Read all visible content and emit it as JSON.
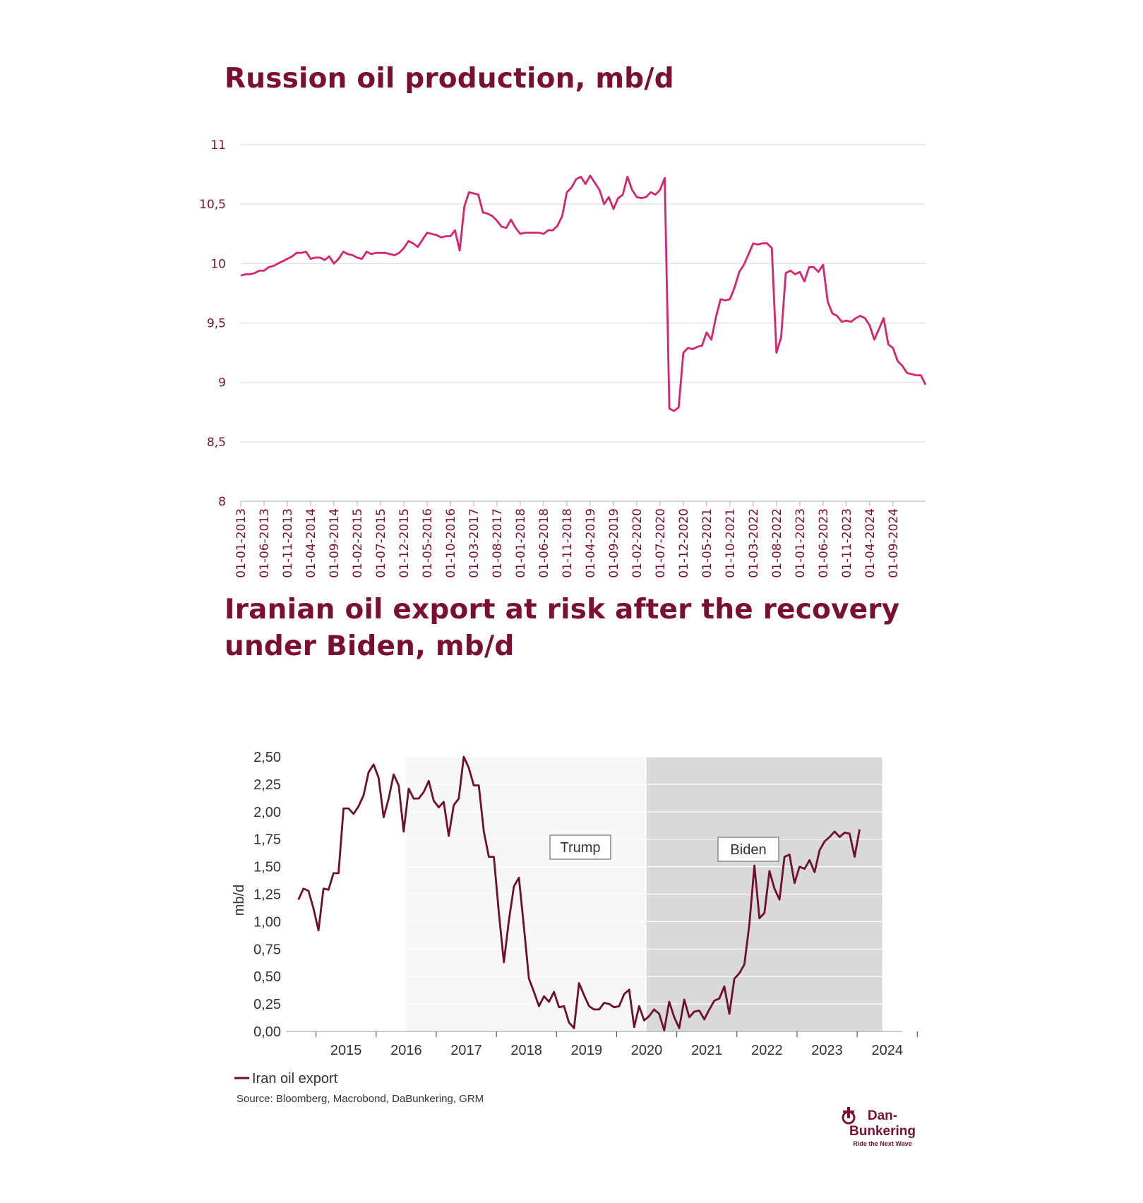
{
  "colors": {
    "title": "#7a0f33",
    "line1": "#d6246e",
    "line2": "#6e0f2e",
    "biden_bg": "#d9d9d9",
    "trump_bg": "#f7f7f7"
  },
  "chart_data": [
    {
      "type": "line",
      "title": "Russion oil production, mb/d",
      "xlabel": "",
      "ylabel": "",
      "ylim": [
        8,
        11
      ],
      "y_ticks": [
        "8",
        "8,5",
        "9",
        "9,5",
        "10",
        "10,5",
        "11"
      ],
      "x_tick_labels": [
        "01-01-2013",
        "01-06-2013",
        "01-11-2013",
        "01-04-2014",
        "01-09-2014",
        "01-02-2015",
        "01-07-2015",
        "01-12-2015",
        "01-05-2016",
        "01-10-2016",
        "01-03-2017",
        "01-08-2017",
        "01-01-2018",
        "01-06-2018",
        "01-11-2018",
        "01-04-2019",
        "01-09-2019",
        "01-02-2020",
        "01-07-2020",
        "01-12-2020",
        "01-05-2021",
        "01-10-2021",
        "01-03-2022",
        "01-08-2022",
        "01-01-2023",
        "01-06-2023",
        "01-11-2023",
        "01-04-2024",
        "01-09-2024"
      ],
      "series": [
        {
          "name": "Russian oil production",
          "start": "2013-01",
          "values": [
            9.9,
            9.91,
            9.91,
            9.92,
            9.94,
            9.94,
            9.97,
            9.98,
            10.0,
            10.02,
            10.04,
            10.06,
            10.09,
            10.09,
            10.1,
            10.04,
            10.05,
            10.05,
            10.03,
            10.06,
            10.0,
            10.04,
            10.1,
            10.08,
            10.07,
            10.05,
            10.04,
            10.1,
            10.08,
            10.09,
            10.09,
            10.09,
            10.08,
            10.07,
            10.09,
            10.13,
            10.19,
            10.17,
            10.14,
            10.2,
            10.26,
            10.25,
            10.24,
            10.22,
            10.23,
            10.23,
            10.28,
            10.11,
            10.48,
            10.6,
            10.59,
            10.58,
            10.43,
            10.42,
            10.4,
            10.36,
            10.31,
            10.3,
            10.37,
            10.3,
            10.25,
            10.26,
            10.26,
            10.26,
            10.26,
            10.25,
            10.28,
            10.28,
            10.32,
            10.4,
            10.6,
            10.64,
            10.71,
            10.73,
            10.67,
            10.74,
            10.68,
            10.62,
            10.5,
            10.56,
            10.46,
            10.55,
            10.58,
            10.73,
            10.62,
            10.56,
            10.55,
            10.56,
            10.6,
            10.58,
            10.62,
            10.72,
            8.78,
            8.76,
            8.79,
            9.25,
            9.29,
            9.28,
            9.3,
            9.31,
            9.42,
            9.36,
            9.55,
            9.7,
            9.69,
            9.7,
            9.8,
            9.93,
            9.99,
            10.08,
            10.17,
            10.16,
            10.17,
            10.17,
            10.13,
            9.25,
            9.38,
            9.92,
            9.94,
            9.91,
            9.93,
            9.85,
            9.97,
            9.97,
            9.93,
            9.99,
            9.68,
            9.58,
            9.56,
            9.51,
            9.52,
            9.51,
            9.54,
            9.56,
            9.54,
            9.48,
            9.36,
            9.45,
            9.54,
            9.32,
            9.29,
            9.18,
            9.14,
            9.08,
            9.07,
            9.06,
            9.06,
            8.98
          ]
        }
      ]
    },
    {
      "type": "line",
      "title": "Iranian oil export at risk after the recovery under Biden, mb/d",
      "xlabel": "",
      "ylabel": "mb/d",
      "ylim": [
        0,
        2.5
      ],
      "y_ticks": [
        "0,00",
        "0,25",
        "0,50",
        "0,75",
        "1,00",
        "1,25",
        "1,50",
        "1,75",
        "2,00",
        "2,25",
        "2,50"
      ],
      "x_tick_labels": [
        "2015",
        "2016",
        "2017",
        "2018",
        "2019",
        "2020",
        "2021",
        "2022",
        "2023",
        "2024"
      ],
      "shaded_periods": [
        {
          "label": "Trump",
          "from": 2016.5,
          "to": 2020.5
        },
        {
          "label": "Biden",
          "from": 2020.5,
          "to": 2024.417
        }
      ],
      "legend": "Iran oil export",
      "series": [
        {
          "name": "Iran oil export",
          "start": 2014.708,
          "values": [
            1.2,
            1.3,
            1.28,
            1.12,
            0.92,
            1.3,
            1.29,
            1.44,
            1.44,
            2.03,
            2.03,
            1.98,
            2.05,
            2.15,
            2.36,
            2.43,
            2.31,
            1.95,
            2.12,
            2.34,
            2.24,
            1.82,
            2.21,
            2.12,
            2.12,
            2.18,
            2.28,
            2.1,
            2.04,
            2.09,
            1.78,
            2.06,
            2.12,
            2.5,
            2.4,
            2.24,
            2.24,
            1.82,
            1.59,
            1.59,
            1.08,
            0.63,
            1.01,
            1.32,
            1.4,
            0.95,
            0.48,
            0.36,
            0.23,
            0.32,
            0.27,
            0.36,
            0.22,
            0.23,
            0.08,
            0.03,
            0.44,
            0.33,
            0.23,
            0.2,
            0.2,
            0.26,
            0.25,
            0.22,
            0.23,
            0.34,
            0.38,
            0.04,
            0.23,
            0.1,
            0.14,
            0.2,
            0.16,
            0.01,
            0.27,
            0.13,
            0.03,
            0.29,
            0.13,
            0.18,
            0.19,
            0.11,
            0.2,
            0.28,
            0.3,
            0.41,
            0.16,
            0.48,
            0.53,
            0.61,
            0.98,
            1.51,
            1.03,
            1.08,
            1.46,
            1.3,
            1.2,
            1.59,
            1.61,
            1.35,
            1.5,
            1.48,
            1.56,
            1.45,
            1.65,
            1.73,
            1.77,
            1.82,
            1.77,
            1.81,
            1.8,
            1.59,
            1.84
          ]
        }
      ]
    }
  ],
  "source_text": "Source: Bloomberg, Macrobond, DaBunkering, GRM",
  "logo": {
    "brand": "Dan-Bunkering",
    "tagline": "Ride the Next Wave"
  }
}
